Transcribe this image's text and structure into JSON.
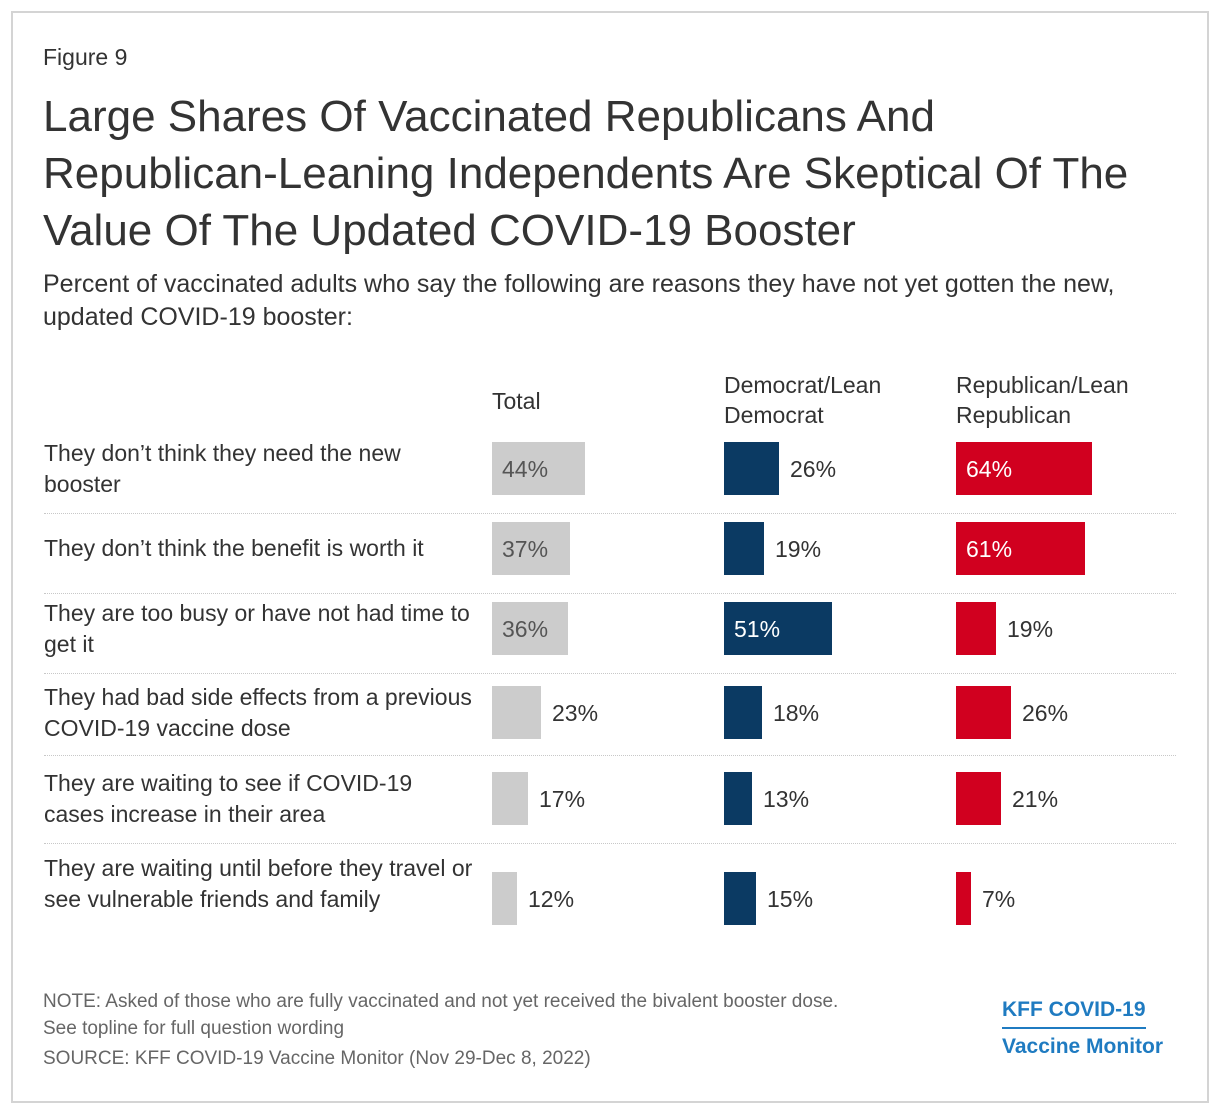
{
  "figure_label": "Figure 9",
  "title": "Large Shares Of Vaccinated Republicans And Republican-Leaning Independents Are Skeptical Of The Value Of The Updated COVID-19 Booster",
  "subtitle": "Percent of vaccinated adults who say the following are reasons they have not yet gotten the new, updated COVID-19 booster:",
  "chart_data": {
    "type": "bar",
    "orientation": "horizontal",
    "title": "Large Shares Of Vaccinated Republicans And Republican-Leaning Independents Are Skeptical Of The Value Of The Updated COVID-19 Booster",
    "categories": [
      "They don’t think they need the new booster",
      "They don’t think the benefit is worth it",
      "They are too busy or have not had time to get it",
      "They had bad side effects from a previous COVID-19 vaccine dose",
      "They are waiting to see if COVID-19 cases increase in their area",
      "They are waiting until before they travel or see vulnerable friends and family"
    ],
    "series": [
      {
        "name": "Total",
        "color": "#cccccc",
        "values": [
          44,
          37,
          36,
          23,
          17,
          12
        ]
      },
      {
        "name": "Democrat/Lean Democrat",
        "color": "#0b3a63",
        "values": [
          26,
          19,
          51,
          18,
          13,
          15
        ]
      },
      {
        "name": "Republican/Lean Republican",
        "color": "#d1001f",
        "values": [
          64,
          61,
          19,
          26,
          21,
          7
        ]
      }
    ],
    "value_suffix": "%",
    "xlim": [
      0,
      100
    ]
  },
  "note_line1": "NOTE: Asked of those who are fully vaccinated and not yet received the bivalent booster dose.",
  "note_line2": "See topline for full question wording",
  "source": "SOURCE: KFF COVID-19 Vaccine Monitor (Nov 29-Dec 8, 2022)",
  "brand_line1": "KFF COVID-19",
  "brand_line2": "Vaccine Monitor"
}
